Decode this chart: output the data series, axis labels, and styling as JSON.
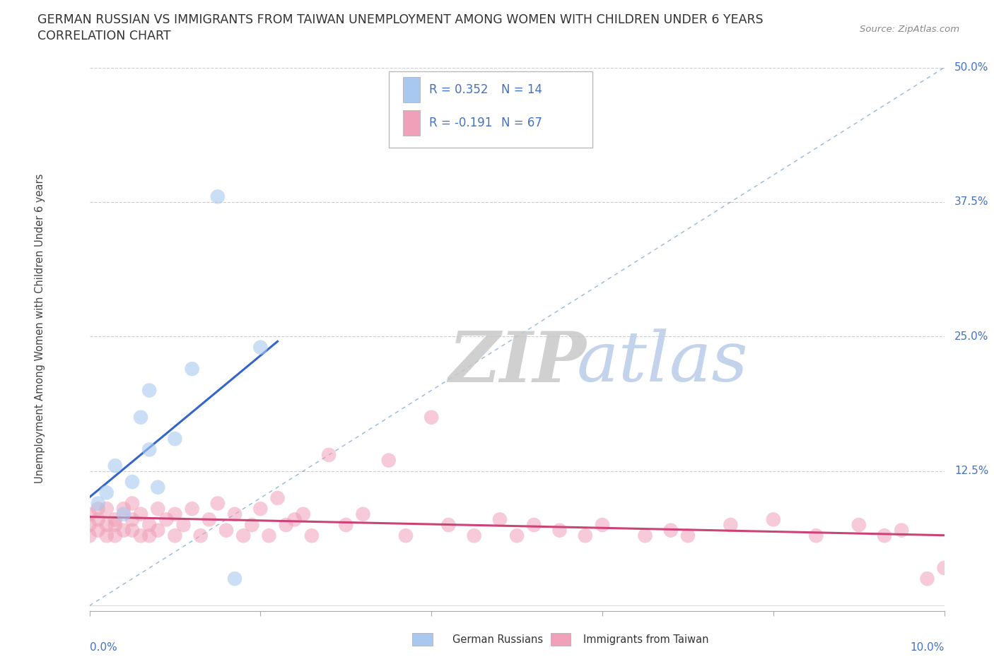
{
  "title_line1": "GERMAN RUSSIAN VS IMMIGRANTS FROM TAIWAN UNEMPLOYMENT AMONG WOMEN WITH CHILDREN UNDER 6 YEARS",
  "title_line2": "CORRELATION CHART",
  "source": "Source: ZipAtlas.com",
  "ylabel": "Unemployment Among Women with Children Under 6 years",
  "xmin": 0.0,
  "xmax": 0.1,
  "ymin": -0.005,
  "ymax": 0.52,
  "color_blue": "#a8c8f0",
  "color_pink": "#f0a0b8",
  "trendline_blue_color": "#3366cc",
  "trendline_pink_color": "#cc4477",
  "diagonal_color": "#6699cc",
  "watermark_zip_color": "#c8c8c8",
  "watermark_atlas_color": "#b8cce8",
  "legend_r1": "R = 0.352",
  "legend_n1": "N = 14",
  "legend_r2": "R = -0.191",
  "legend_n2": "N = 67",
  "gr_x": [
    0.001,
    0.002,
    0.003,
    0.004,
    0.005,
    0.006,
    0.007,
    0.007,
    0.008,
    0.01,
    0.012,
    0.015,
    0.017,
    0.02
  ],
  "gr_y": [
    0.095,
    0.105,
    0.13,
    0.085,
    0.115,
    0.175,
    0.145,
    0.2,
    0.11,
    0.155,
    0.22,
    0.38,
    0.025,
    0.24
  ],
  "tw_x": [
    0.0,
    0.0,
    0.0,
    0.001,
    0.001,
    0.001,
    0.002,
    0.002,
    0.002,
    0.003,
    0.003,
    0.003,
    0.004,
    0.004,
    0.005,
    0.005,
    0.005,
    0.006,
    0.006,
    0.007,
    0.007,
    0.008,
    0.008,
    0.009,
    0.01,
    0.01,
    0.011,
    0.012,
    0.013,
    0.014,
    0.015,
    0.016,
    0.017,
    0.018,
    0.019,
    0.02,
    0.021,
    0.022,
    0.023,
    0.024,
    0.025,
    0.026,
    0.028,
    0.03,
    0.032,
    0.035,
    0.037,
    0.04,
    0.042,
    0.045,
    0.048,
    0.05,
    0.052,
    0.055,
    0.058,
    0.06,
    0.065,
    0.068,
    0.07,
    0.075,
    0.08,
    0.085,
    0.09,
    0.093,
    0.095,
    0.098,
    0.1
  ],
  "tw_y": [
    0.075,
    0.085,
    0.065,
    0.08,
    0.09,
    0.07,
    0.075,
    0.09,
    0.065,
    0.08,
    0.065,
    0.075,
    0.09,
    0.07,
    0.08,
    0.095,
    0.07,
    0.085,
    0.065,
    0.075,
    0.065,
    0.09,
    0.07,
    0.08,
    0.085,
    0.065,
    0.075,
    0.09,
    0.065,
    0.08,
    0.095,
    0.07,
    0.085,
    0.065,
    0.075,
    0.09,
    0.065,
    0.1,
    0.075,
    0.08,
    0.085,
    0.065,
    0.14,
    0.075,
    0.085,
    0.135,
    0.065,
    0.175,
    0.075,
    0.065,
    0.08,
    0.065,
    0.075,
    0.07,
    0.065,
    0.075,
    0.065,
    0.07,
    0.065,
    0.075,
    0.08,
    0.065,
    0.075,
    0.065,
    0.07,
    0.025,
    0.035
  ]
}
